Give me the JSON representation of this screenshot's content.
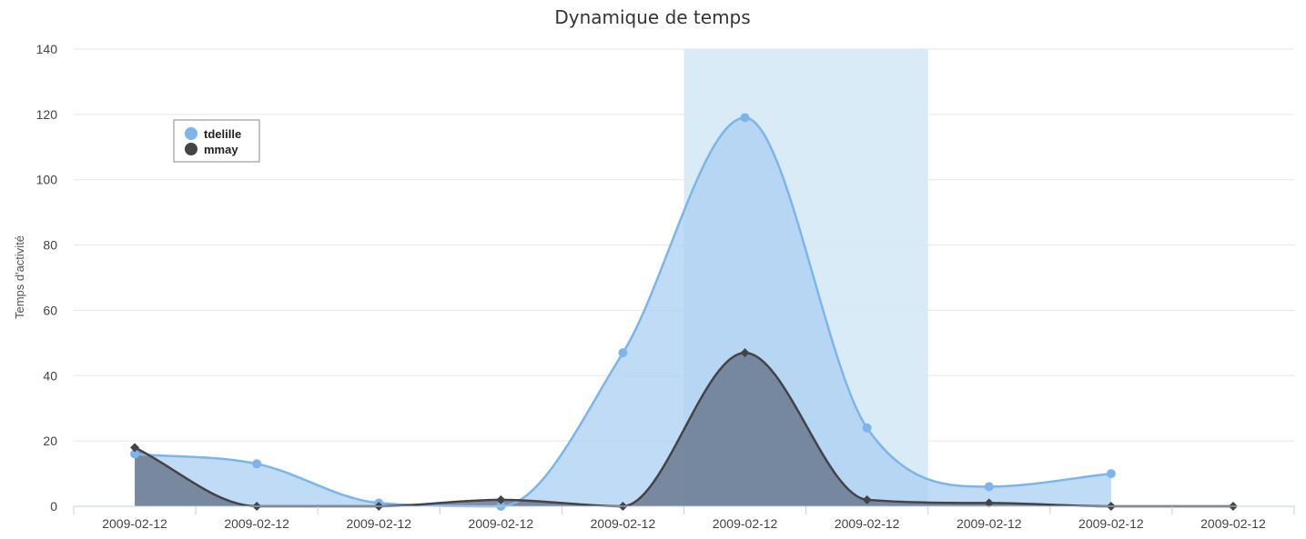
{
  "chart_data": {
    "type": "area",
    "title": "Dynamique de temps",
    "xlabel": "",
    "ylabel": "Temps d'activité",
    "categories": [
      "2009-02-12",
      "2009-02-12",
      "2009-02-12",
      "2009-02-12",
      "2009-02-12",
      "2009-02-12",
      "2009-02-12",
      "2009-02-12",
      "2009-02-12",
      "2009-02-12"
    ],
    "ylim": [
      0,
      140
    ],
    "yticks": [
      0,
      20,
      40,
      60,
      80,
      100,
      120,
      140
    ],
    "grid": true,
    "legend_position": "top-left",
    "highlight_band": {
      "from_index": 4.5,
      "to_index": 6.5,
      "color": "#d9ebf7"
    },
    "series": [
      {
        "name": "tdelille",
        "color": "#7cb5ec",
        "fill": "#a9cff1",
        "marker": "circle",
        "values": [
          16,
          13,
          1,
          0,
          47,
          119,
          24,
          6,
          10,
          null
        ]
      },
      {
        "name": "mmay",
        "color": "#434348",
        "fill": "#6b7a8f",
        "marker": "diamond",
        "values": [
          18,
          0,
          0,
          2,
          0,
          47,
          2,
          1,
          0,
          0
        ]
      }
    ]
  }
}
